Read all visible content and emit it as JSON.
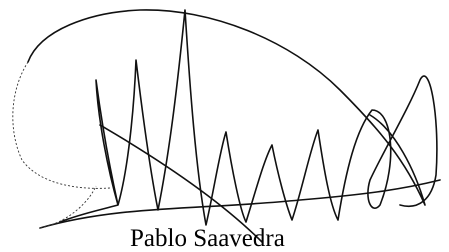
{
  "signature": {
    "name": "Pablo Saavedra"
  }
}
